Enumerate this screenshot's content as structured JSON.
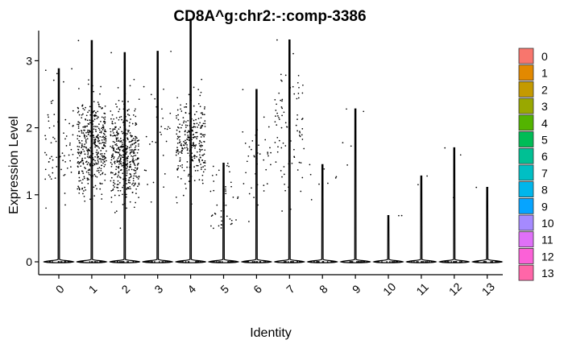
{
  "chart_data": {
    "type": "violin",
    "title": "CD8A^g:chr2:-:comp-3386",
    "xlabel": "Identity",
    "ylabel": "Expression Level",
    "ylim": [
      -0.15,
      3.8
    ],
    "yticks": [
      0,
      1,
      2,
      3
    ],
    "grid": false,
    "legend_position": "right",
    "categories": [
      "0",
      "1",
      "2",
      "3",
      "4",
      "5",
      "6",
      "7",
      "8",
      "9",
      "10",
      "11",
      "12",
      "13"
    ],
    "series": [
      {
        "name": "0",
        "color": "#F8766D",
        "max": 2.88,
        "n_nonzero": 70,
        "median_nonzero": 1.7
      },
      {
        "name": "1",
        "color": "#E38900",
        "max": 3.3,
        "n_nonzero": 420,
        "median_nonzero": 1.75
      },
      {
        "name": "2",
        "color": "#C49A00",
        "max": 3.12,
        "n_nonzero": 430,
        "median_nonzero": 1.6
      },
      {
        "name": "3",
        "color": "#99A800",
        "max": 3.14,
        "n_nonzero": 30,
        "median_nonzero": 1.9
      },
      {
        "name": "4",
        "color": "#53B400",
        "max": 3.62,
        "n_nonzero": 270,
        "median_nonzero": 1.8
      },
      {
        "name": "5",
        "color": "#00BC56",
        "max": 1.47,
        "n_nonzero": 45,
        "median_nonzero": 0.9
      },
      {
        "name": "6",
        "color": "#00C094",
        "max": 2.57,
        "n_nonzero": 40,
        "median_nonzero": 1.4
      },
      {
        "name": "7",
        "color": "#00BFC4",
        "max": 3.31,
        "n_nonzero": 85,
        "median_nonzero": 2.0
      },
      {
        "name": "8",
        "color": "#00B6EB",
        "max": 1.45,
        "n_nonzero": 8,
        "median_nonzero": 1.0
      },
      {
        "name": "9",
        "color": "#06A4FF",
        "max": 2.28,
        "n_nonzero": 5,
        "median_nonzero": 1.4
      },
      {
        "name": "10",
        "color": "#A58AFF",
        "max": 0.69,
        "n_nonzero": 2,
        "median_nonzero": 0.68
      },
      {
        "name": "11",
        "color": "#DF70F8",
        "max": 1.28,
        "n_nonzero": 2,
        "median_nonzero": 1.27
      },
      {
        "name": "12",
        "color": "#FB61D7",
        "max": 1.7,
        "n_nonzero": 3,
        "median_nonzero": 1.55
      },
      {
        "name": "13",
        "color": "#FF66A8",
        "max": 1.11,
        "n_nonzero": 2,
        "median_nonzero": 1.1
      }
    ]
  }
}
